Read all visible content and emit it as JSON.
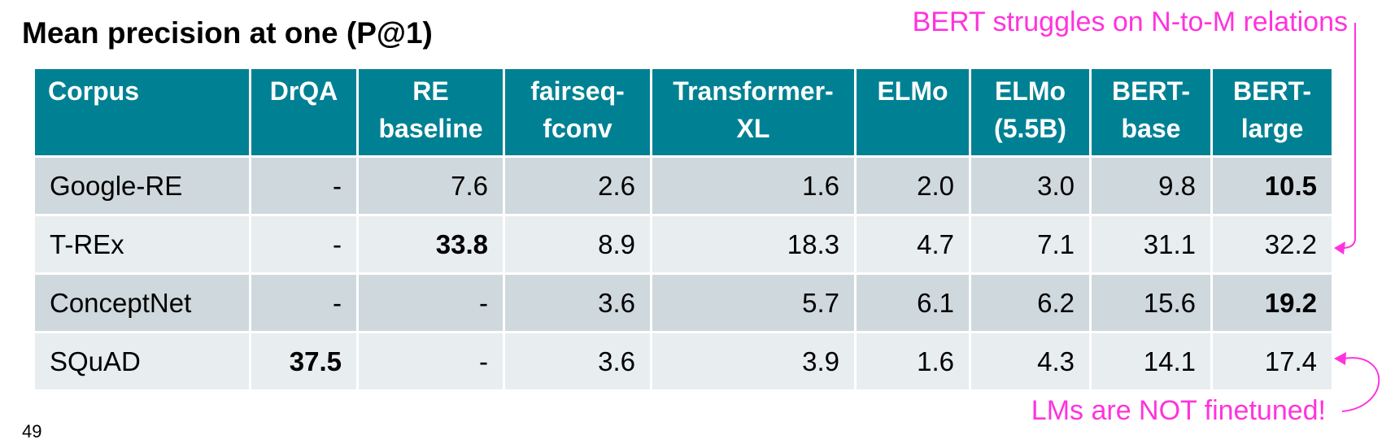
{
  "title": "Mean precision at one (P@1)",
  "annotations": {
    "top": "BERT struggles on N-to-M relations",
    "bottom": "LMs are NOT finetuned!"
  },
  "page_number": "49",
  "colors": {
    "header_bg": "#008193",
    "header_text": "#ffffff",
    "row_dark": "#cfd8dd",
    "row_light": "#e8edf0",
    "annotation": "#ff33dd"
  },
  "table": {
    "headers": [
      [
        "Corpus"
      ],
      [
        "DrQA"
      ],
      [
        "RE",
        "baseline"
      ],
      [
        "fairseq-",
        "fconv"
      ],
      [
        "Transformer-",
        "XL"
      ],
      [
        "ELMo"
      ],
      [
        "ELMo",
        "(5.5B)"
      ],
      [
        "BERT-",
        "base"
      ],
      [
        "BERT-",
        "large"
      ]
    ],
    "rows": [
      {
        "label": "Google-RE",
        "values": [
          "-",
          "7.6",
          "2.6",
          "1.6",
          "2.0",
          "3.0",
          "9.8",
          "10.5"
        ],
        "bold": [
          7
        ]
      },
      {
        "label": "T-REx",
        "values": [
          "-",
          "33.8",
          "8.9",
          "18.3",
          "4.7",
          "7.1",
          "31.1",
          "32.2"
        ],
        "bold": [
          1
        ]
      },
      {
        "label": "ConceptNet",
        "values": [
          "-",
          "-",
          "3.6",
          "5.7",
          "6.1",
          "6.2",
          "15.6",
          "19.2"
        ],
        "bold": [
          7
        ]
      },
      {
        "label": "SQuAD",
        "values": [
          "37.5",
          "-",
          "3.6",
          "3.9",
          "1.6",
          "4.3",
          "14.1",
          "17.4"
        ],
        "bold": [
          0
        ]
      }
    ]
  }
}
